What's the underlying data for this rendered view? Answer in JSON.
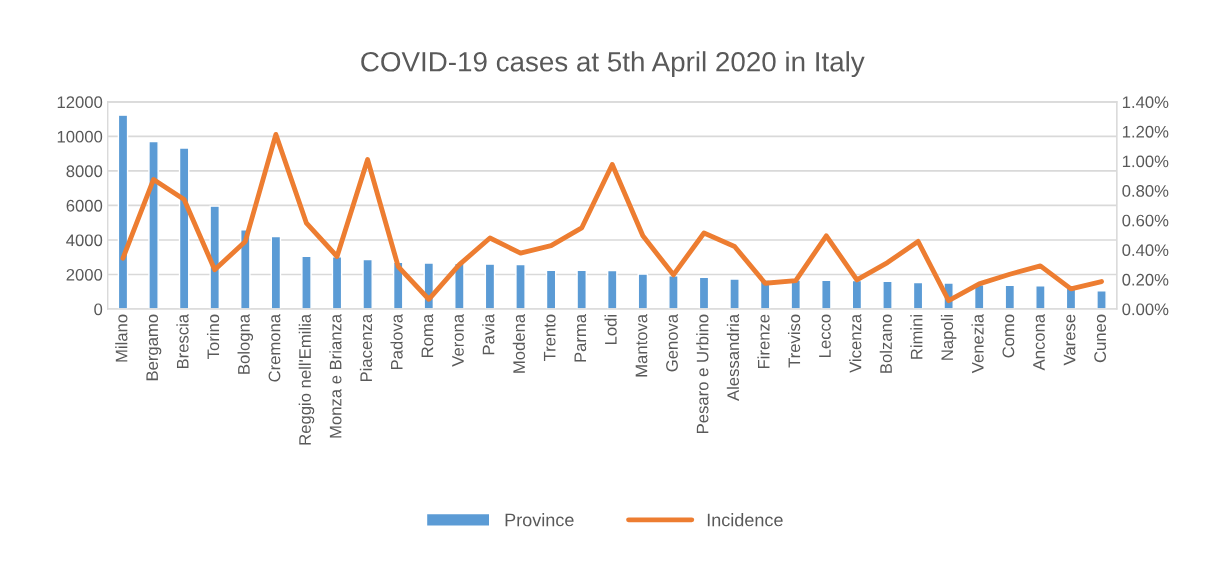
{
  "chart_data": {
    "type": "bar",
    "title": "COVID-19 cases at 5th April 2020 in Italy",
    "categories": [
      "Milano",
      "Bergamo",
      "Brescia",
      "Torino",
      "Bologna",
      "Cremona",
      "Reggio nell'Emilia",
      "Monza e Brianza",
      "Piacenza",
      "Padova",
      "Roma",
      "Verona",
      "Pavia",
      "Modena",
      "Trento",
      "Parma",
      "Lodi",
      "Mantova",
      "Genova",
      "Pesaro e Urbino",
      "Alessandria",
      "Firenze",
      "Treviso",
      "Lecco",
      "Vicenza",
      "Bolzano",
      "Rimini",
      "Napoli",
      "Venezia",
      "Como",
      "Ancona",
      "Varese",
      "Cuneo"
    ],
    "series": [
      {
        "name": "Province",
        "color": "#5b9bd5",
        "values": [
          11230,
          9700,
          9330,
          5960,
          4590,
          4200,
          3060,
          3020,
          2870,
          2710,
          2670,
          2650,
          2600,
          2580,
          2250,
          2250,
          2230,
          2030,
          1920,
          1840,
          1740,
          1680,
          1680,
          1670,
          1650,
          1610,
          1530,
          1510,
          1400,
          1380,
          1340,
          1300,
          1050
        ]
      },
      {
        "name": "Incidence",
        "type": "line",
        "axis": "y2",
        "color": "#ed7d31",
        "values": [
          0.344,
          0.876,
          0.74,
          0.265,
          0.457,
          1.18,
          0.58,
          0.355,
          1.01,
          0.287,
          0.066,
          0.3,
          0.48,
          0.378,
          0.428,
          0.548,
          0.977,
          0.495,
          0.231,
          0.514,
          0.423,
          0.174,
          0.192,
          0.495,
          0.197,
          0.314,
          0.457,
          0.057,
          0.17,
          0.235,
          0.292,
          0.136,
          0.186
        ]
      }
    ],
    "ylim": [
      0,
      12000
    ],
    "yticks": [
      0,
      2000,
      4000,
      6000,
      8000,
      10000,
      12000
    ],
    "y2lim": [
      0,
      1.4
    ],
    "y2ticks": [
      {
        "value": 0,
        "label": "0.00%"
      },
      {
        "value": 0.2,
        "label": "0.20%"
      },
      {
        "value": 0.4,
        "label": "0.40%"
      },
      {
        "value": 0.6,
        "label": "0.60%"
      },
      {
        "value": 0.8,
        "label": "0.80%"
      },
      {
        "value": 1.0,
        "label": "1.00%"
      },
      {
        "value": 1.2,
        "label": "1.20%"
      },
      {
        "value": 1.4,
        "label": "1.40%"
      }
    ],
    "grid": "y",
    "legend": "bottom",
    "marker": "none",
    "line_style": "solid"
  }
}
